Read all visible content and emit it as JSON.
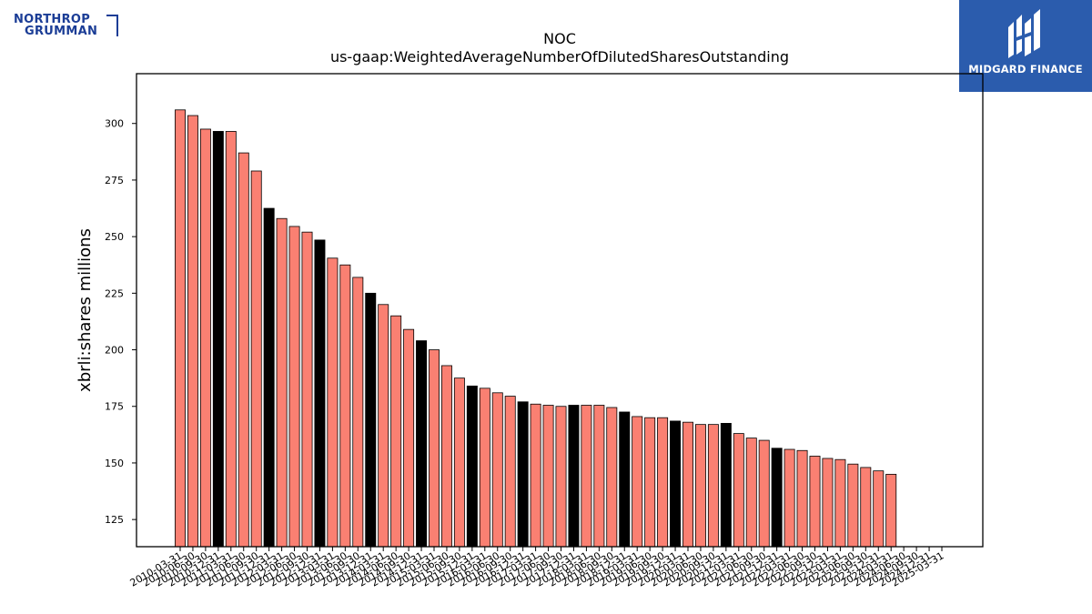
{
  "logos": {
    "left": {
      "line1": "NORTHROP",
      "line2": "GRUMMAN",
      "color": "#1b3d96"
    },
    "right": {
      "name": "MIDGARD FINANCE",
      "background": "#2b5cad"
    }
  },
  "chart_data": {
    "type": "bar",
    "title": "NOC",
    "subtitle": "us-gaap:WeightedAverageNumberOfDilutedSharesOutstanding",
    "xlabel": "",
    "ylabel": "xbrli:shares millions",
    "ylim": [
      113,
      322
    ],
    "yticks": [
      125,
      150,
      175,
      200,
      225,
      250,
      275,
      300
    ],
    "grid": false,
    "colors": {
      "quarter": "#fa8072",
      "fiscal_year_end": "#000000",
      "edge": "#000000"
    },
    "categories": [
      "2010-03-31",
      "2010-06-30",
      "2010-09-30",
      "2010-12-31",
      "2011-03-31",
      "2011-06-30",
      "2011-09-30",
      "2011-12-31",
      "2012-03-31",
      "2012-06-30",
      "2012-09-30",
      "2012-12-31",
      "2013-03-31",
      "2013-06-30",
      "2013-09-30",
      "2013-12-31",
      "2014-03-31",
      "2014-06-30",
      "2014-09-30",
      "2014-12-31",
      "2015-03-31",
      "2015-06-30",
      "2015-09-30",
      "2015-12-31",
      "2016-03-31",
      "2016-06-30",
      "2016-09-30",
      "2016-12-31",
      "2017-03-31",
      "2017-06-30",
      "2017-09-30",
      "2017-12-31",
      "2018-03-31",
      "2018-06-30",
      "2018-09-30",
      "2018-12-31",
      "2019-03-31",
      "2019-06-30",
      "2019-09-30",
      "2019-12-31",
      "2020-03-31",
      "2020-06-30",
      "2020-09-30",
      "2020-12-31",
      "2021-03-31",
      "2021-06-30",
      "2021-09-30",
      "2021-12-31",
      "2022-03-31",
      "2022-06-30",
      "2022-09-30",
      "2022-12-31",
      "2023-03-31",
      "2023-06-30",
      "2023-09-30",
      "2023-12-31",
      "2024-03-31",
      "2024-06-30",
      "2024-09-30",
      "2024-12-31",
      "2025-03-31"
    ],
    "values": [
      306,
      303.5,
      297.5,
      296.5,
      296.5,
      287,
      279,
      262.5,
      258,
      254.5,
      252,
      248.5,
      240.5,
      237.5,
      232,
      225,
      220,
      215,
      209,
      204,
      200,
      193,
      187.5,
      184,
      183,
      181,
      179.5,
      177,
      176,
      175.5,
      175,
      175.5,
      175.5,
      175.5,
      174.5,
      172.5,
      170.5,
      170,
      170,
      168.5,
      168,
      167,
      167,
      167.5,
      163,
      161,
      160,
      156.5,
      156,
      155.5,
      153,
      152,
      151.5,
      149.5,
      148,
      146.5,
      145,
      null,
      null,
      null,
      null
    ],
    "highlight": [
      false,
      false,
      false,
      true,
      false,
      false,
      false,
      true,
      false,
      false,
      false,
      true,
      false,
      false,
      false,
      true,
      false,
      false,
      false,
      true,
      false,
      false,
      false,
      true,
      false,
      false,
      false,
      true,
      false,
      false,
      false,
      true,
      false,
      false,
      false,
      true,
      false,
      false,
      false,
      true,
      false,
      false,
      false,
      true,
      false,
      false,
      false,
      true,
      false,
      false,
      false,
      false,
      false,
      false,
      false,
      false,
      false,
      false,
      false,
      false,
      false
    ]
  }
}
